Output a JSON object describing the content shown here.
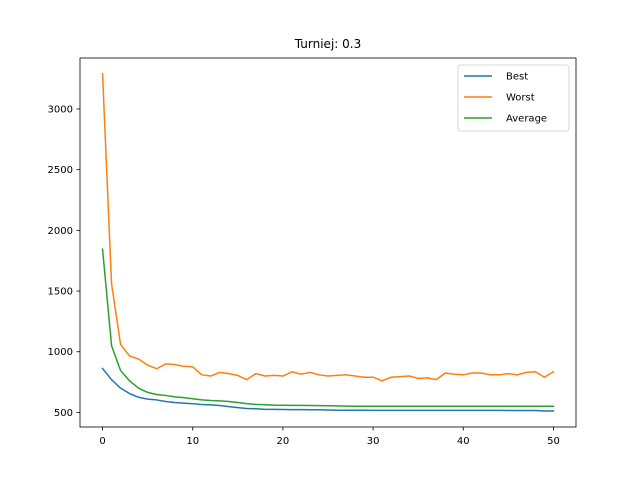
{
  "chart_data": {
    "type": "line",
    "title": "Turniej: 0.3",
    "xlabel": "",
    "ylabel": "",
    "xlim": [
      -2.5,
      52.5
    ],
    "ylim": [
      380,
      3420
    ],
    "xticks": [
      0,
      10,
      20,
      30,
      40,
      50
    ],
    "yticks": [
      500,
      1000,
      1500,
      2000,
      2500,
      3000
    ],
    "grid": false,
    "legend": "top-right",
    "x": [
      0,
      1,
      2,
      3,
      4,
      5,
      6,
      7,
      8,
      9,
      10,
      11,
      12,
      13,
      14,
      15,
      16,
      17,
      18,
      19,
      20,
      21,
      22,
      23,
      24,
      25,
      26,
      27,
      28,
      29,
      30,
      31,
      32,
      33,
      34,
      35,
      36,
      37,
      38,
      39,
      40,
      41,
      42,
      43,
      44,
      45,
      46,
      47,
      48,
      49,
      50
    ],
    "series": [
      {
        "name": "Best",
        "color": "#1f77b4",
        "values": [
          862,
          770,
          700,
          655,
          625,
          610,
          603,
          590,
          582,
          577,
          572,
          565,
          562,
          557,
          548,
          540,
          532,
          530,
          525,
          525,
          524,
          523,
          523,
          522,
          522,
          520,
          518,
          518,
          518,
          518,
          517,
          517,
          517,
          517,
          517,
          517,
          517,
          517,
          517,
          517,
          517,
          517,
          517,
          517,
          517,
          516,
          516,
          516,
          516,
          512,
          512
        ]
      },
      {
        "name": "Worst",
        "color": "#ff7f0e",
        "values": [
          3290,
          1560,
          1060,
          965,
          940,
          890,
          860,
          900,
          895,
          880,
          875,
          810,
          800,
          830,
          820,
          805,
          770,
          820,
          800,
          805,
          800,
          835,
          815,
          830,
          810,
          800,
          805,
          810,
          800,
          790,
          790,
          760,
          790,
          795,
          800,
          780,
          785,
          770,
          825,
          815,
          810,
          825,
          825,
          810,
          810,
          820,
          810,
          830,
          835,
          790,
          835
        ]
      },
      {
        "name": "Average",
        "color": "#2ca02c",
        "values": [
          1845,
          1050,
          845,
          760,
          700,
          665,
          648,
          640,
          628,
          622,
          613,
          603,
          598,
          595,
          590,
          582,
          573,
          566,
          563,
          560,
          559,
          558,
          558,
          557,
          556,
          555,
          554,
          552,
          551,
          551,
          551,
          551,
          551,
          551,
          551,
          551,
          551,
          551,
          551,
          551,
          551,
          551,
          551,
          551,
          551,
          551,
          551,
          551,
          551,
          551,
          551
        ]
      }
    ]
  }
}
